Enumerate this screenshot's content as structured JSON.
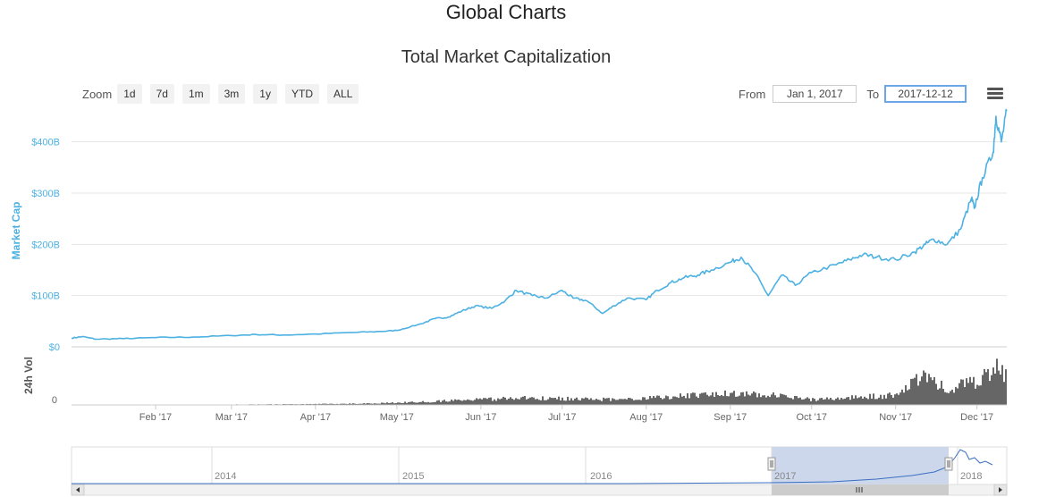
{
  "page": {
    "title": "Global Charts"
  },
  "toolbar": {
    "zoom_label": "Zoom",
    "zoom_buttons": [
      "1d",
      "7d",
      "1m",
      "3m",
      "1y",
      "YTD",
      "ALL"
    ],
    "from_label": "From",
    "from_value": "Jan 1, 2017",
    "to_label": "To",
    "to_value": "2017-12-12",
    "menu_icon": "hamburger-menu-icon"
  },
  "colors": {
    "market_cap": "#4db1e2",
    "volume": "#666666",
    "navigator_line": "#3a6fc2",
    "navigator_mask": "#c7d3ea"
  },
  "chart_data": {
    "type": "line",
    "title": "Total Market Capitalization",
    "ylabel": "Market Cap",
    "volume_label": "24h Vol",
    "ylim": [
      0,
      450
    ],
    "xlim": [
      "2017-01-01",
      "2017-12-12"
    ],
    "y_ticks": [
      "$0",
      "$100B",
      "$200B",
      "$300B",
      "$400B"
    ],
    "y_tick_values": [
      0,
      100,
      200,
      300,
      400
    ],
    "volume_ticks": [
      "0"
    ],
    "x_ticks": [
      "Feb '17",
      "Mar '17",
      "Apr '17",
      "May '17",
      "Jun '17",
      "Jul '17",
      "Aug '17",
      "Sep '17",
      "Oct '17",
      "Nov '17",
      "Dec '17"
    ],
    "x_tick_dates": [
      "2017-02-01",
      "2017-03-01",
      "2017-04-01",
      "2017-05-01",
      "2017-06-01",
      "2017-07-01",
      "2017-08-01",
      "2017-09-01",
      "2017-10-01",
      "2017-11-01",
      "2017-12-01"
    ],
    "series": [
      {
        "name": "Market Cap",
        "x": [
          "2017-01-01",
          "2017-01-05",
          "2017-01-10",
          "2017-01-20",
          "2017-02-01",
          "2017-02-15",
          "2017-03-01",
          "2017-03-10",
          "2017-03-20",
          "2017-04-01",
          "2017-04-15",
          "2017-04-25",
          "2017-05-01",
          "2017-05-10",
          "2017-05-15",
          "2017-05-20",
          "2017-05-25",
          "2017-05-30",
          "2017-06-05",
          "2017-06-10",
          "2017-06-14",
          "2017-06-20",
          "2017-06-25",
          "2017-07-01",
          "2017-07-05",
          "2017-07-10",
          "2017-07-16",
          "2017-07-20",
          "2017-07-25",
          "2017-08-01",
          "2017-08-05",
          "2017-08-10",
          "2017-08-15",
          "2017-08-20",
          "2017-08-25",
          "2017-09-01",
          "2017-09-05",
          "2017-09-10",
          "2017-09-15",
          "2017-09-20",
          "2017-09-25",
          "2017-10-01",
          "2017-10-10",
          "2017-10-15",
          "2017-10-20",
          "2017-10-25",
          "2017-11-01",
          "2017-11-08",
          "2017-11-12",
          "2017-11-15",
          "2017-11-20",
          "2017-11-25",
          "2017-11-29",
          "2017-11-30",
          "2017-12-03",
          "2017-12-07",
          "2017-12-08",
          "2017-12-10",
          "2017-12-12"
        ],
        "values": [
          17,
          20,
          15,
          16,
          18,
          19,
          22,
          24,
          23,
          25,
          28,
          30,
          32,
          45,
          55,
          58,
          70,
          80,
          75,
          90,
          110,
          100,
          95,
          110,
          95,
          90,
          65,
          80,
          95,
          92,
          110,
          125,
          135,
          140,
          150,
          165,
          175,
          145,
          100,
          140,
          120,
          145,
          160,
          170,
          180,
          175,
          170,
          185,
          200,
          210,
          200,
          230,
          290,
          270,
          330,
          380,
          450,
          400,
          460
        ]
      }
    ],
    "volume": {
      "x": [
        "2017-01-01",
        "2017-02-01",
        "2017-03-01",
        "2017-04-01",
        "2017-04-20",
        "2017-05-01",
        "2017-05-15",
        "2017-06-01",
        "2017-06-15",
        "2017-07-01",
        "2017-07-15",
        "2017-08-01",
        "2017-08-15",
        "2017-09-01",
        "2017-09-15",
        "2017-10-01",
        "2017-10-15",
        "2017-11-01",
        "2017-11-10",
        "2017-11-20",
        "2017-12-01",
        "2017-12-08",
        "2017-12-12"
      ],
      "values": [
        0,
        0.5,
        1,
        2,
        3,
        5,
        8,
        12,
        15,
        14,
        12,
        15,
        20,
        25,
        22,
        12,
        16,
        22,
        60,
        38,
        50,
        85,
        60
      ]
    }
  },
  "navigator": {
    "year_labels": [
      "2014",
      "2015",
      "2016",
      "2017",
      "2018"
    ],
    "scroll_left_icon": "arrow-left-icon",
    "scroll_right_icon": "arrow-right-icon",
    "scrollbar_grip_icon": "grip-icon",
    "handle_icon": "drag-handle-icon"
  }
}
